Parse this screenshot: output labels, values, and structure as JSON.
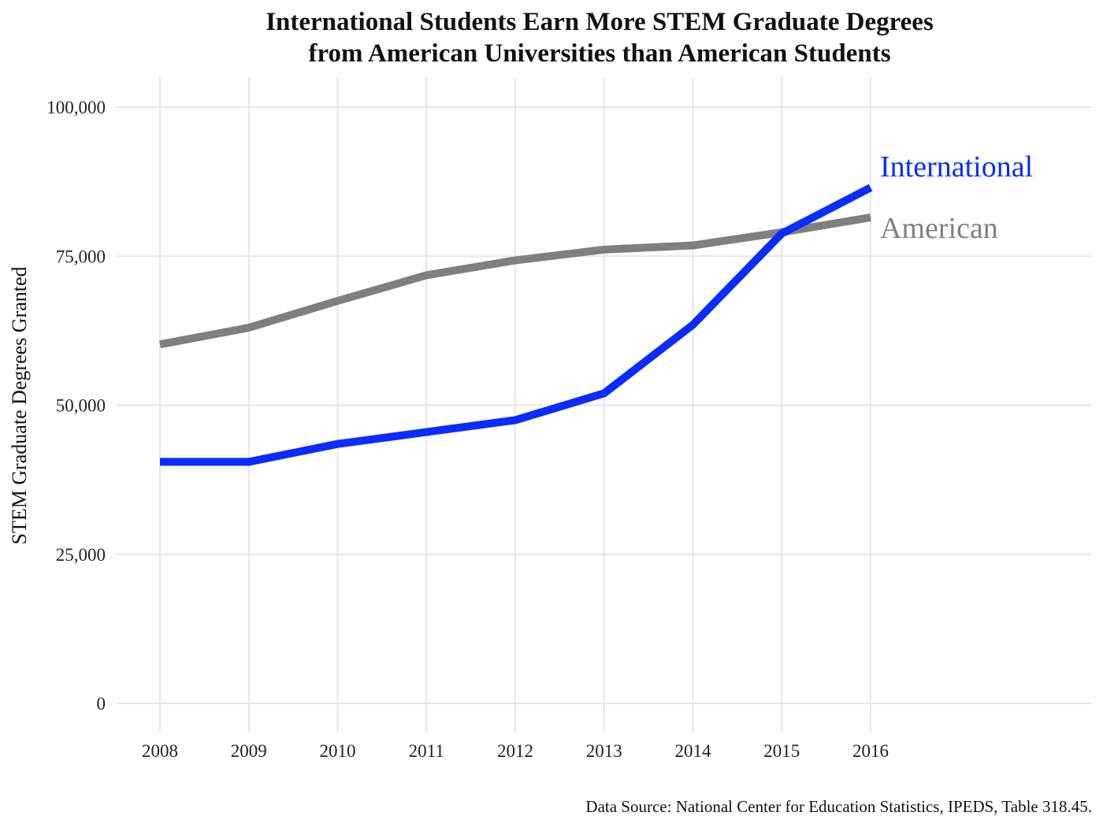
{
  "chart_data": {
    "type": "line",
    "title_line1": "International Students Earn More STEM Graduate Degrees",
    "title_line2": "from American Universities than American Students",
    "xlabel": "",
    "ylabel": "STEM Graduate Degrees Granted",
    "x": [
      2008,
      2009,
      2010,
      2011,
      2012,
      2013,
      2014,
      2015,
      2016
    ],
    "x_tick_labels": [
      "2008",
      "2009",
      "2010",
      "2011",
      "2012",
      "2013",
      "2014",
      "2015",
      "2016"
    ],
    "y_ticks": [
      0,
      25000,
      50000,
      75000,
      100000
    ],
    "y_tick_labels": [
      "0",
      "25,000",
      "50,000",
      "75,000",
      "100,000"
    ],
    "ylim": [
      0,
      100000
    ],
    "grid": true,
    "legend": "direct labels at line ends",
    "series": [
      {
        "name": "International",
        "color": "#0a2cff",
        "values": [
          40500,
          40500,
          43500,
          45500,
          47500,
          52000,
          63500,
          78800,
          86500
        ]
      },
      {
        "name": "American",
        "color": "#7f7f7f",
        "values": [
          60200,
          63000,
          67500,
          71800,
          74300,
          76100,
          76800,
          79000,
          81500
        ]
      }
    ]
  },
  "source_note": "Data Source: National Center for Education Statistics, IPEDS, Table 318.45."
}
